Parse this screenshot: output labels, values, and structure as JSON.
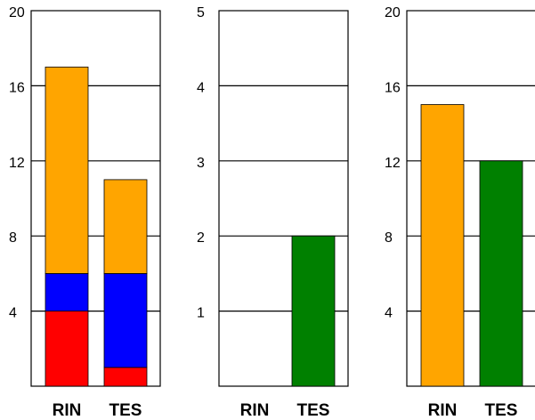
{
  "chart_data": [
    {
      "type": "bar",
      "stacked": true,
      "categories": [
        "RIN",
        "TES"
      ],
      "ylim": [
        0,
        20
      ],
      "yticks": [
        4,
        8,
        12,
        16,
        20
      ],
      "grid": true,
      "series": [
        {
          "color": "#ff0000",
          "values": [
            4,
            1
          ]
        },
        {
          "color": "#0000ff",
          "values": [
            2,
            5
          ]
        },
        {
          "color": "#ffa500",
          "values": [
            11,
            5
          ]
        }
      ]
    },
    {
      "type": "bar",
      "categories": [
        "RIN",
        "TES"
      ],
      "ylim": [
        0,
        5
      ],
      "yticks": [
        1,
        2,
        3,
        4,
        5
      ],
      "grid": true,
      "series": [
        {
          "color": "#008000",
          "values": [
            0,
            2
          ]
        }
      ]
    },
    {
      "type": "bar",
      "categories": [
        "RIN",
        "TES"
      ],
      "ylim": [
        0,
        20
      ],
      "yticks": [
        4,
        8,
        12,
        16,
        20
      ],
      "grid": true,
      "bar_colors": [
        "#ffa500",
        "#008000"
      ],
      "series": [
        {
          "values": [
            15,
            12
          ]
        }
      ]
    }
  ]
}
